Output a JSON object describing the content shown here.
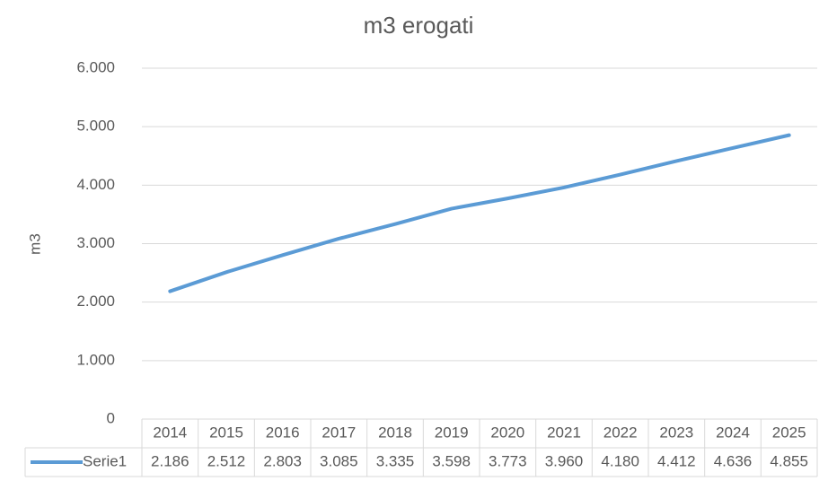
{
  "chart_data": {
    "type": "line",
    "title": "m3 erogati",
    "y_label": "m3",
    "categories": [
      "2014",
      "2015",
      "2016",
      "2017",
      "2018",
      "2019",
      "2020",
      "2021",
      "2022",
      "2023",
      "2024",
      "2025"
    ],
    "series": [
      {
        "name": "Serie1",
        "color": "#5b9bd5",
        "values": [
          2186,
          2512,
          2803,
          3085,
          3335,
          3598,
          3773,
          3960,
          4180,
          4412,
          4636,
          4855
        ],
        "value_labels": [
          "2.186",
          "2.512",
          "2.803",
          "3.085",
          "3.335",
          "3.598",
          "3.773",
          "3.960",
          "4.180",
          "4.412",
          "4.636",
          "4.855"
        ]
      }
    ],
    "ylim": [
      0,
      6000
    ],
    "yticks": [
      0,
      {
        "value": 1000,
        "label": "1.000"
      },
      {
        "value": 2000,
        "label": "2.000"
      },
      {
        "value": 3000,
        "label": "3.000"
      },
      {
        "value": 4000,
        "label": "4.000"
      },
      {
        "value": 5000,
        "label": "5.000"
      },
      {
        "value": 6000,
        "label": "6.000"
      }
    ],
    "grid": true,
    "data_table": true
  }
}
